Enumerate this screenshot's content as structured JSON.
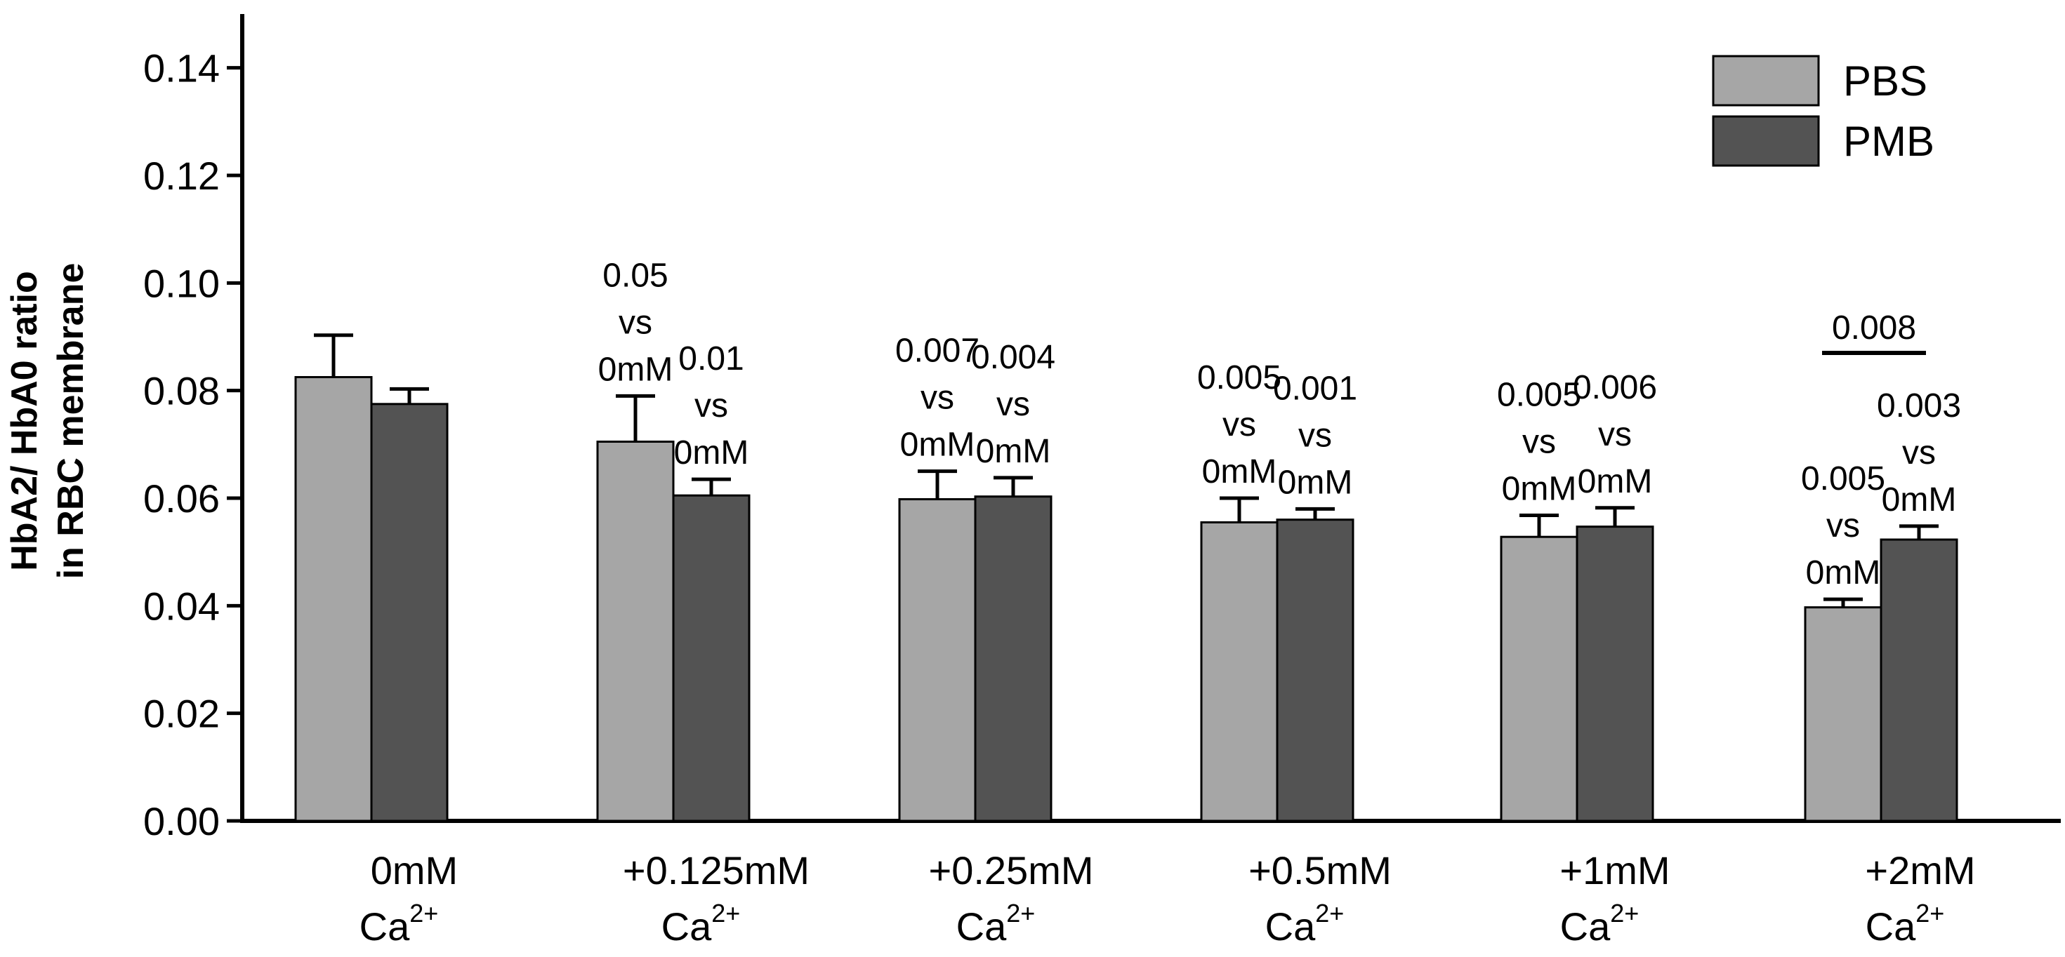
{
  "chart_data": {
    "type": "bar",
    "title": "",
    "ylabel": [
      "HbA2/ HbA0 ratio",
      "in RBC membrane"
    ],
    "xlabel": "",
    "ylim": [
      0,
      0.15
    ],
    "yticks": [
      "0.00",
      "0.02",
      "0.04",
      "0.06",
      "0.08",
      "0.10",
      "0.12",
      "0.14"
    ],
    "ytick_values": [
      0,
      0.02,
      0.04,
      0.06,
      0.08,
      0.1,
      0.12,
      0.14
    ],
    "categories": [
      {
        "main": "0mM",
        "ion": "Ca",
        "charge": "2+"
      },
      {
        "main": "+0.125mM",
        "ion": "Ca",
        "charge": "2+"
      },
      {
        "main": "+0.25mM",
        "ion": "Ca",
        "charge": "2+"
      },
      {
        "main": "+0.5mM",
        "ion": "Ca",
        "charge": "2+"
      },
      {
        "main": "+1mM",
        "ion": "Ca",
        "charge": "2+"
      },
      {
        "main": "+2mM",
        "ion": "Ca",
        "charge": "2+"
      }
    ],
    "series": [
      {
        "name": "PBS",
        "color": "#a6a6a6",
        "values": [
          0.0825,
          0.0705,
          0.0598,
          0.0555,
          0.0528,
          0.0397
        ],
        "errors": [
          0.0078,
          0.0085,
          0.0052,
          0.0045,
          0.004,
          0.0015
        ],
        "annotations": [
          null,
          [
            "0.05",
            "vs",
            "0mM"
          ],
          [
            "0.007",
            "vs",
            "0mM"
          ],
          [
            "0.005",
            "vs",
            "0mM"
          ],
          [
            "0.005",
            "vs",
            "0mM"
          ],
          [
            "0.005",
            "vs",
            "0mM"
          ]
        ]
      },
      {
        "name": "PMB",
        "color": "#535353",
        "values": [
          0.0775,
          0.0605,
          0.0603,
          0.056,
          0.0547,
          0.0523
        ],
        "errors": [
          0.0028,
          0.003,
          0.0035,
          0.002,
          0.0035,
          0.0025
        ],
        "annotations": [
          null,
          [
            "0.01",
            "vs",
            "0mM"
          ],
          [
            "0.004",
            "vs",
            "0mM"
          ],
          [
            "0.001",
            "vs",
            "0mM"
          ],
          [
            "0.006",
            "vs",
            "0mM"
          ],
          [
            "0.003",
            "vs",
            "0mM"
          ]
        ]
      }
    ],
    "bracket": {
      "category_index": 5,
      "label": "0.008"
    },
    "legend": {
      "placement": "top-right",
      "entries": [
        "PBS",
        "PMB"
      ]
    },
    "grid": false
  }
}
